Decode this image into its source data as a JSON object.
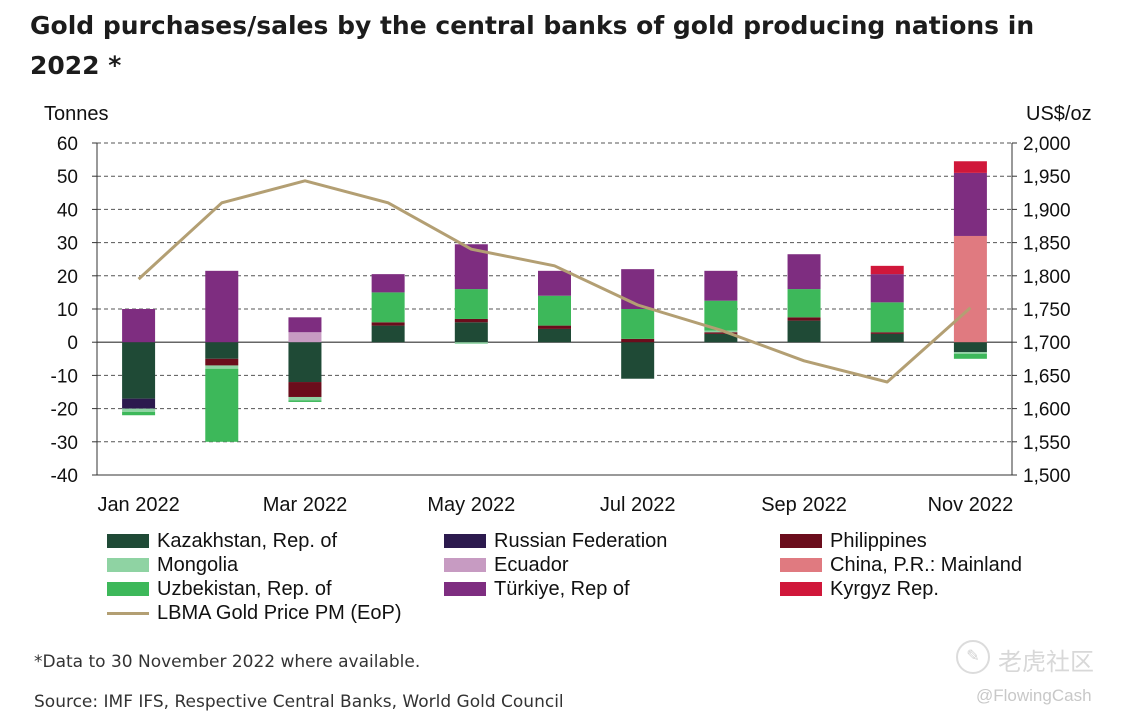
{
  "title": "Gold purchases/sales by the central banks of gold producing nations  in 2022 *",
  "footnote": "*Data to 30 November 2022 where available.",
  "source": "Source: IMF IFS, Respective Central Banks, World Gold Council",
  "watermark": {
    "text": "老虎社区",
    "handle": "@FlowingCash",
    "icon": "tiger-logo-icon"
  },
  "colors": {
    "Kazakhstan": "#1f4a36",
    "Russia": "#2c1a4e",
    "Philippines": "#6b0d1c",
    "Mongolia": "#8fd3a3",
    "Ecuador": "#c79bc2",
    "China": "#e07a80",
    "Uzbekistan": "#3db85a",
    "Turkiye": "#7e2d80",
    "Kyrgyz": "#d0173a",
    "Gold": "#b39f73"
  },
  "chart_data": {
    "type": "bar",
    "stacked": true,
    "categories": [
      "Jan 2022",
      "Feb 2022",
      "Mar 2022",
      "Apr 2022",
      "May 2022",
      "Jun 2022",
      "Jul 2022",
      "Aug 2022",
      "Sep 2022",
      "Oct 2022",
      "Nov 2022"
    ],
    "x_tick_labels": [
      "Jan 2022",
      "Mar 2022",
      "May 2022",
      "Jul 2022",
      "Sep 2022",
      "Nov 2022"
    ],
    "ylabel_left": "Tonnes",
    "ylabel_right": "US$/oz",
    "ylim_left": [
      -40,
      60
    ],
    "ylim_right": [
      1500,
      2000
    ],
    "yticks_left": [
      "60",
      "50",
      "40",
      "30",
      "20",
      "10",
      "0",
      "-10",
      "-20",
      "-30",
      "-40"
    ],
    "yticks_right": [
      "2,000",
      "1,950",
      "1,900",
      "1,850",
      "1,800",
      "1,750",
      "1,700",
      "1,650",
      "1,600",
      "1,550",
      "1,500"
    ],
    "grid": true,
    "legend_position": "bottom",
    "series": [
      {
        "name": "Kazakhstan, Rep. of",
        "key": "Kazakhstan",
        "values": [
          -17,
          -5,
          -12,
          5,
          6,
          4,
          -11,
          2.5,
          6.5,
          2.5,
          -3
        ]
      },
      {
        "name": "Russian Federation",
        "key": "Russia",
        "values": [
          -3,
          0,
          0,
          0,
          0,
          0,
          0,
          0,
          0,
          0,
          0
        ]
      },
      {
        "name": "Philippines",
        "key": "Philippines",
        "values": [
          0,
          -2,
          -4.5,
          1,
          1,
          1,
          1,
          0.5,
          1,
          0.5,
          0
        ]
      },
      {
        "name": "Mongolia",
        "key": "Mongolia",
        "values": [
          -1,
          -1,
          -1,
          0,
          -0.5,
          0,
          0,
          0.5,
          0,
          0,
          -0.5
        ]
      },
      {
        "name": "Ecuador",
        "key": "Ecuador",
        "values": [
          0,
          0,
          3,
          0,
          0,
          0,
          0,
          0,
          0,
          0,
          0
        ]
      },
      {
        "name": "China, P.R.: Mainland",
        "key": "China",
        "values": [
          0,
          0,
          0,
          0,
          0,
          0,
          0,
          0,
          0,
          0,
          32
        ]
      },
      {
        "name": "Uzbekistan, Rep. of",
        "key": "Uzbekistan",
        "values": [
          -1,
          -22,
          -0.5,
          9,
          9,
          9,
          9,
          9,
          8.5,
          9,
          -1.5
        ]
      },
      {
        "name": "Türkiye, Rep of",
        "key": "Turkiye",
        "values": [
          10,
          21.5,
          4.5,
          5.5,
          13.5,
          7.5,
          12,
          9,
          10.5,
          8.5,
          19
        ]
      },
      {
        "name": "Kyrgyz Rep.",
        "key": "Kyrgyz",
        "values": [
          0,
          0,
          0,
          0,
          0,
          0,
          0,
          0,
          0,
          2.5,
          3.5
        ]
      }
    ],
    "line": {
      "name": "LBMA Gold Price PM (EoP)",
      "key": "Gold",
      "axis": "right",
      "values": [
        1795,
        1910,
        1943,
        1910,
        1840,
        1815,
        1756,
        1718,
        1672,
        1640,
        1752
      ]
    }
  },
  "legend": [
    {
      "label": "Kazakhstan, Rep. of",
      "key": "Kazakhstan",
      "col": 0,
      "row": 0
    },
    {
      "label": "Mongolia",
      "key": "Mongolia",
      "col": 0,
      "row": 1
    },
    {
      "label": "Uzbekistan, Rep. of",
      "key": "Uzbekistan",
      "col": 0,
      "row": 2
    },
    {
      "label": "LBMA Gold Price PM (EoP)",
      "key": "Gold",
      "col": 0,
      "row": 3,
      "line": true
    },
    {
      "label": "Russian Federation",
      "key": "Russia",
      "col": 1,
      "row": 0
    },
    {
      "label": "Ecuador",
      "key": "Ecuador",
      "col": 1,
      "row": 1
    },
    {
      "label": "Türkiye, Rep of",
      "key": "Turkiye",
      "col": 1,
      "row": 2
    },
    {
      "label": "Philippines",
      "key": "Philippines",
      "col": 2,
      "row": 0
    },
    {
      "label": "China, P.R.: Mainland",
      "key": "China",
      "col": 2,
      "row": 1
    },
    {
      "label": "Kyrgyz Rep.",
      "key": "Kyrgyz",
      "col": 2,
      "row": 2
    }
  ]
}
